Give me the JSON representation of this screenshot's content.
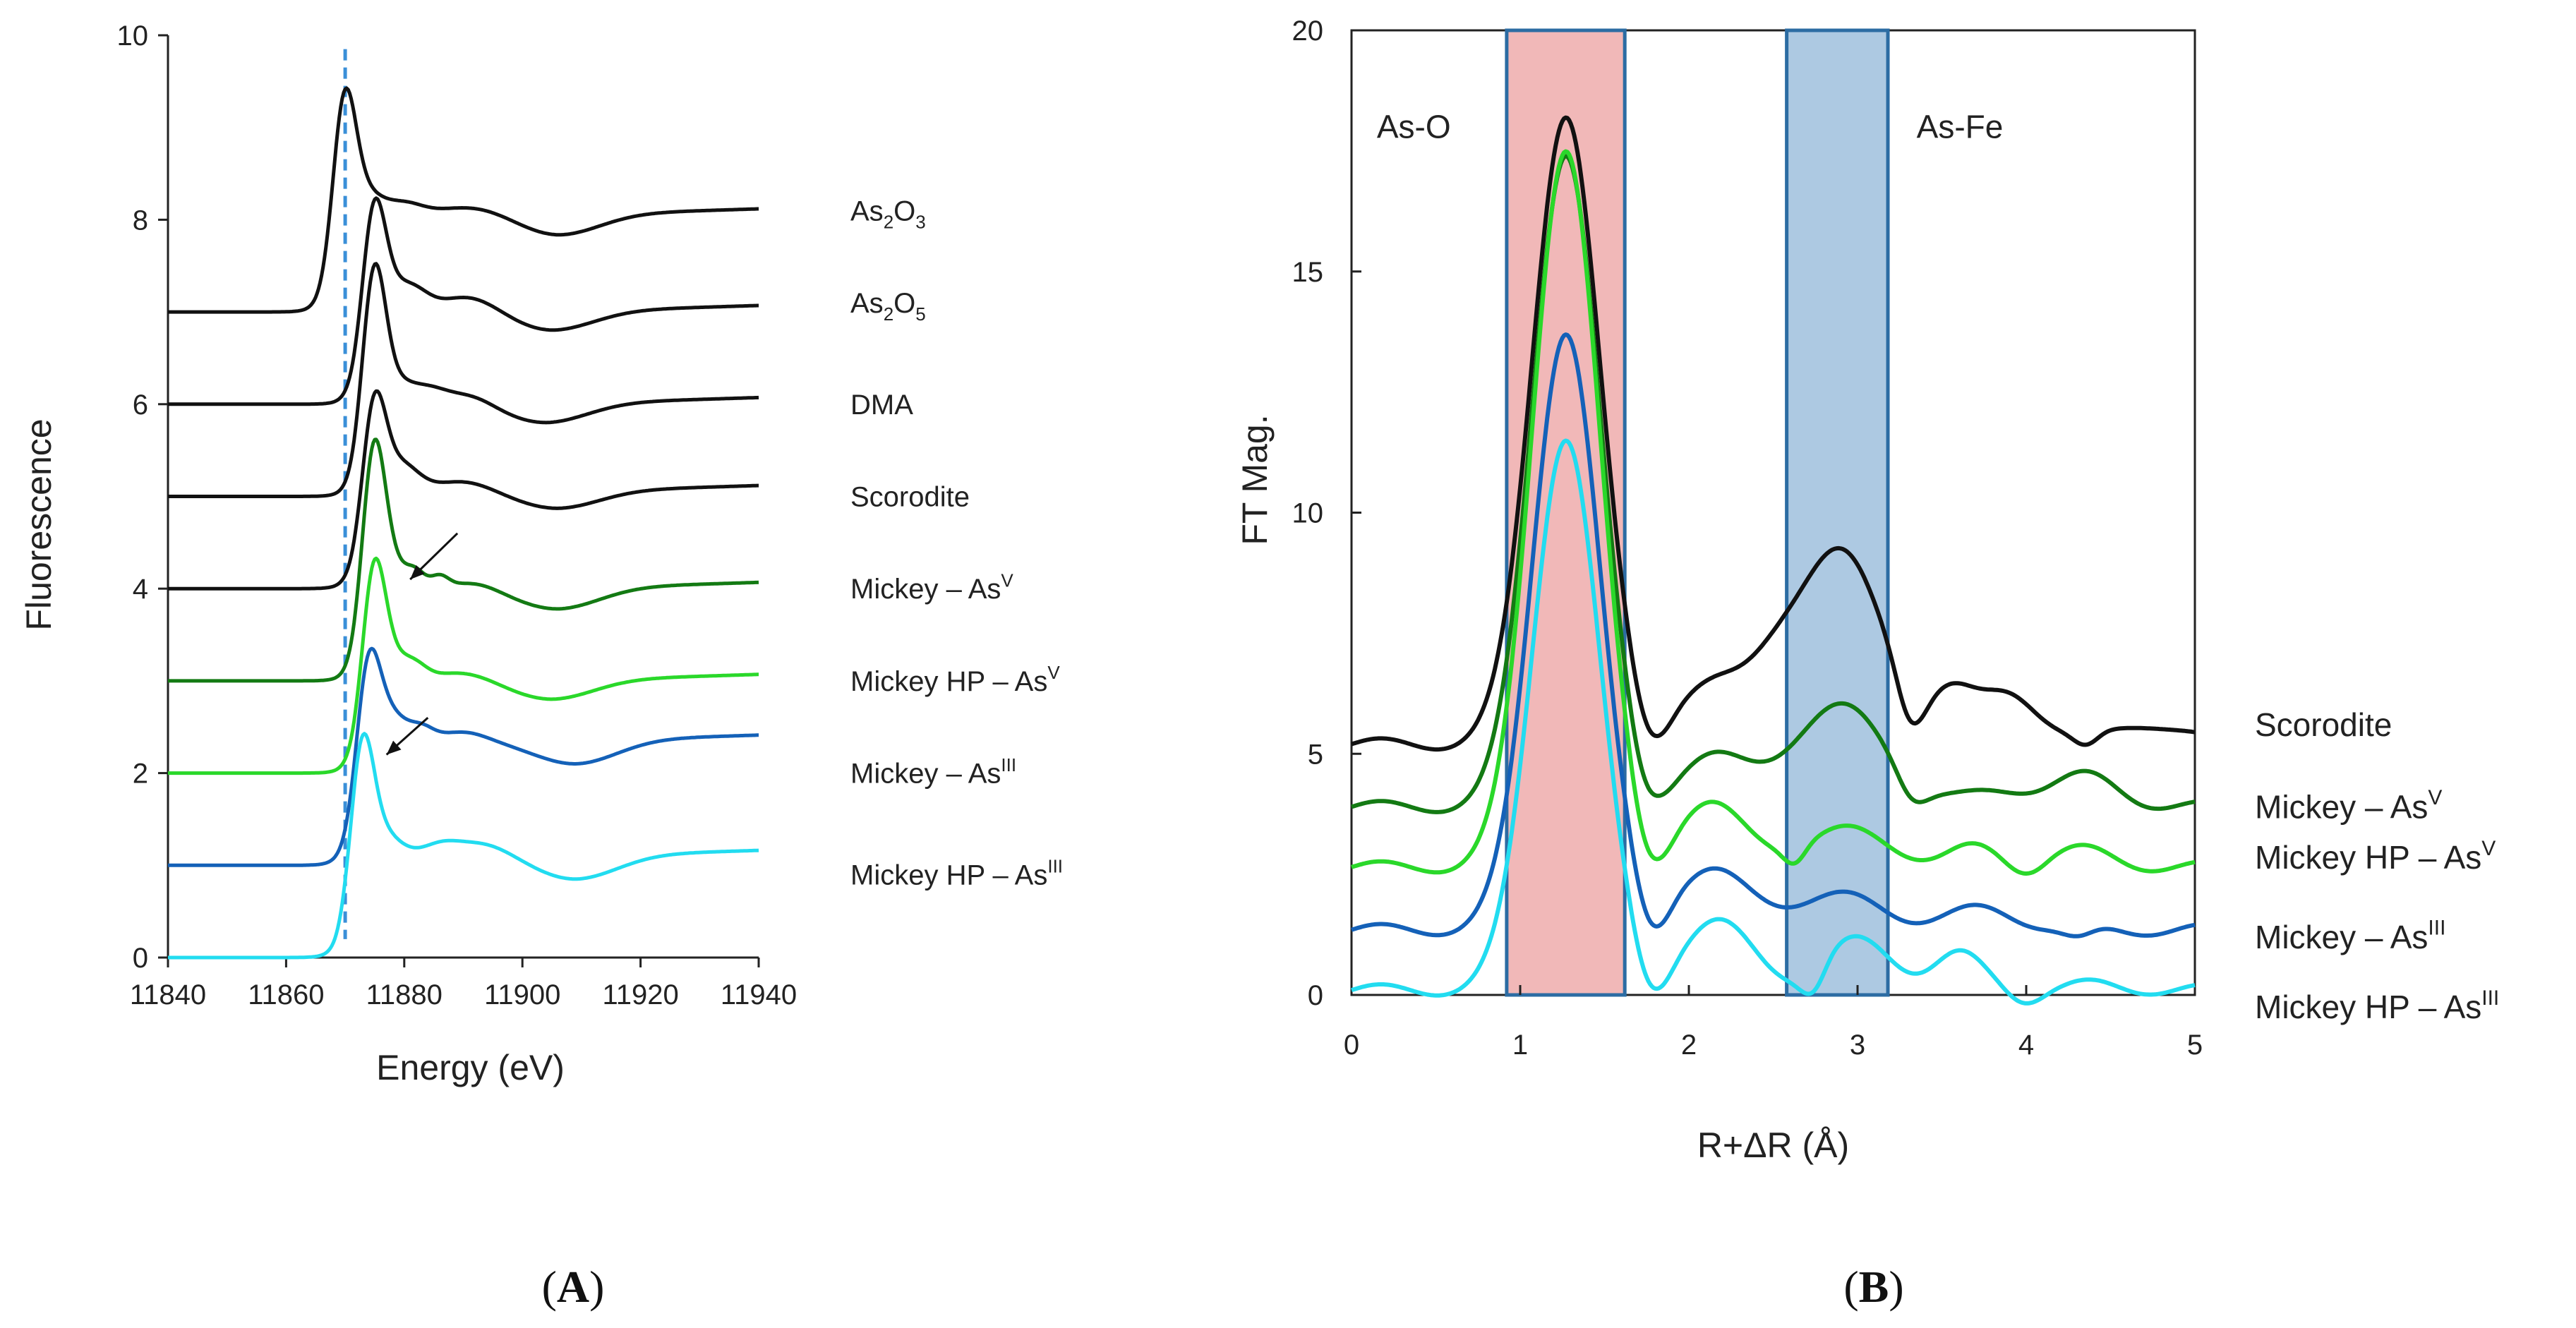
{
  "chart_data": [
    {
      "id": "A",
      "type": "line",
      "panel_label": {
        "open": "(",
        "letter": "A",
        "close": ")"
      },
      "xlabel": "Energy (eV)",
      "ylabel": "Fluorescence",
      "xlim": [
        11840,
        11940
      ],
      "ylim": [
        0,
        10
      ],
      "xticks": [
        "11840",
        "11860",
        "11880",
        "11900",
        "11920",
        "11940"
      ],
      "yticks": [
        "0",
        "2",
        "4",
        "6",
        "8",
        "10"
      ],
      "reference_line": {
        "x": 11870,
        "color": "#3a8fd8",
        "style": "dashed"
      },
      "arrows": [
        {
          "from": [
            11889,
            4.6
          ],
          "to": [
            11881,
            4.1
          ]
        },
        {
          "from": [
            11884,
            2.6
          ],
          "to": [
            11877,
            2.2
          ]
        }
      ],
      "series": [
        {
          "name": "As2O3",
          "label": {
            "base": "As",
            "sub1": "2",
            "mid": "O",
            "sub2": "3"
          },
          "color": "#111111",
          "offset": 7.0,
          "edge": 11868,
          "peak": 2.45,
          "step": 1.05,
          "wiggles": [
            [
              11880,
              0.12,
              3
            ],
            [
              11892,
              0.1,
              6
            ]
          ],
          "dip": [
            11906,
            0.22,
            7
          ],
          "label_y": 8.1
        },
        {
          "name": "As2O5",
          "label": {
            "base": "As",
            "sub1": "2",
            "mid": "O",
            "sub2": "5"
          },
          "color": "#111111",
          "offset": 6.0,
          "edge": 11873,
          "peak": 2.25,
          "step": 1.0,
          "wiggles": [
            [
              11882,
              0.15,
              2.5
            ],
            [
              11891,
              0.18,
              5
            ]
          ],
          "dip": [
            11905,
            0.2,
            7
          ],
          "label_y": 7.1
        },
        {
          "name": "DMA",
          "label": {
            "text": "DMA"
          },
          "color": "#111111",
          "offset": 5.0,
          "edge": 11873,
          "peak": 2.55,
          "step": 1.0,
          "wiggles": [
            [
              11884,
              0.15,
              3
            ],
            [
              11891,
              0.12,
              4
            ]
          ],
          "dip": [
            11904,
            0.2,
            7
          ],
          "label_y": 6.0
        },
        {
          "name": "Scorodite",
          "label": {
            "text": "Scorodite"
          },
          "color": "#111111",
          "offset": 4.0,
          "edge": 11873,
          "peak": 2.15,
          "step": 1.05,
          "wiggles": [
            [
              11881,
              0.1,
              2.5
            ],
            [
              11890,
              0.12,
              5
            ]
          ],
          "dip": [
            11906,
            0.18,
            7
          ],
          "label_y": 5.0
        },
        {
          "name": "Mickey – AsV",
          "label": {
            "base": "Mickey – As",
            "sup": "V"
          },
          "color": "#137a13",
          "offset": 3.0,
          "edge": 11873,
          "peak": 2.65,
          "step": 1.0,
          "wiggles": [
            [
              11882,
              0.12,
              1.5
            ],
            [
              11886,
              0.12,
              1.5
            ],
            [
              11892,
              0.08,
              4
            ]
          ],
          "dip": [
            11906,
            0.22,
            7
          ],
          "label_y": 4.0
        },
        {
          "name": "Mickey HP – AsV",
          "label": {
            "base": "Mickey HP – As",
            "sup": "V"
          },
          "color": "#2ad82a",
          "offset": 2.0,
          "edge": 11873,
          "peak": 2.35,
          "step": 1.0,
          "wiggles": [
            [
              11882,
              0.1,
              2
            ],
            [
              11890,
              0.1,
              5
            ]
          ],
          "dip": [
            11905,
            0.2,
            7
          ],
          "label_y": 3.0
        },
        {
          "name": "Mickey – AsIII",
          "label": {
            "base": "Mickey – As",
            "sup": "III"
          },
          "color": "#1461b8",
          "offset": 1.0,
          "edge": 11872,
          "peak": 2.35,
          "step": 1.35,
          "wiggles": [
            [
              11883,
              0.12,
              2
            ],
            [
              11890,
              0.1,
              4
            ]
          ],
          "dip": [
            11909,
            0.25,
            7
          ],
          "label_y": 2.0
        },
        {
          "name": "Mickey HP – AsIII",
          "label": {
            "base": "Mickey HP – As",
            "sup": "III"
          },
          "color": "#22dcf0",
          "offset": 0.0,
          "edge": 11871,
          "peak": 2.45,
          "step": 1.1,
          "wiggles": [
            [
              11886,
              0.1,
              3
            ],
            [
              11893,
              0.15,
              5
            ]
          ],
          "dip": [
            11909,
            0.25,
            7
          ],
          "label_y": 0.9
        }
      ]
    },
    {
      "id": "B",
      "type": "line",
      "panel_label": {
        "open": "(",
        "letter": "B",
        "close": ")"
      },
      "xlabel": "R+ΔR (Å)",
      "ylabel": "FT Mag.",
      "xlim": [
        0,
        5
      ],
      "ylim": [
        0,
        20
      ],
      "xticks": [
        "0",
        "1",
        "2",
        "3",
        "4",
        "5"
      ],
      "yticks": [
        "0",
        "5",
        "10",
        "15",
        "20"
      ],
      "regions": [
        {
          "name": "As-O",
          "x0": 0.92,
          "x1": 1.62,
          "fill": "#f1b8b8",
          "edge": "#2c6ca3"
        },
        {
          "name": "As-Fe",
          "x0": 2.58,
          "x1": 3.18,
          "fill": "#adc9e2",
          "edge": "#2c6ca3"
        }
      ],
      "annotations": [
        {
          "text": "As-O",
          "x": 0.15,
          "y": 18.0
        },
        {
          "text": "As-Fe",
          "x": 3.35,
          "y": 18.0
        }
      ],
      "series": [
        {
          "name": "Scorodite",
          "label": {
            "text": "Scorodite"
          },
          "color": "#111111",
          "base": 5.2,
          "peak": 18.3,
          "label_y": 5.6,
          "bumps": [
            [
              2.1,
              1.2,
              0.22
            ],
            [
              2.5,
              0.6,
              0.15
            ],
            [
              2.88,
              3.95,
              0.28
            ],
            [
              3.55,
              0.8,
              0.13
            ],
            [
              3.9,
              1.1,
              0.18
            ],
            [
              4.7,
              0.45,
              0.2
            ]
          ],
          "valleys": [
            [
              1.8,
              0.15,
              0.08
            ],
            [
              3.33,
              0.35,
              0.07
            ],
            [
              4.35,
              0.2,
              0.07
            ]
          ]
        },
        {
          "name": "Mickey – AsV",
          "label": {
            "base": "Mickey – As",
            "sup": "V"
          },
          "color": "#137a13",
          "base": 3.9,
          "peak": 17.5,
          "label_y": 3.9,
          "bumps": [
            [
              2.1,
              1.0,
              0.2
            ],
            [
              2.88,
              2.05,
              0.3
            ],
            [
              3.9,
              0.3,
              0.2
            ],
            [
              4.35,
              0.6,
              0.2
            ]
          ],
          "valleys": [
            [
              1.8,
              0.35,
              0.08
            ],
            [
              3.35,
              0.25,
              0.08
            ]
          ]
        },
        {
          "name": "Mickey HP – AsV",
          "label": {
            "base": "Mickey HP – As",
            "sup": "V"
          },
          "color": "#2ad82a",
          "base": 2.65,
          "peak": 17.6,
          "label_y": 2.85,
          "bumps": [
            [
              2.1,
              1.3,
              0.2
            ],
            [
              2.9,
              0.75,
              0.3
            ],
            [
              3.7,
              0.35,
              0.15
            ],
            [
              4.3,
              0.35,
              0.2
            ]
          ],
          "valleys": [
            [
              1.8,
              0.15,
              0.08
            ],
            [
              2.62,
              0.25,
              0.06
            ],
            [
              4.0,
              0.15,
              0.08
            ]
          ]
        },
        {
          "name": "Mickey – AsIII",
          "label": {
            "base": "Mickey – As",
            "sup": "III"
          },
          "color": "#1461b8",
          "base": 1.35,
          "peak": 13.8,
          "label_y": 1.2,
          "bumps": [
            [
              2.1,
              1.2,
              0.22
            ],
            [
              2.85,
              0.7,
              0.3
            ],
            [
              3.75,
              0.4,
              0.22
            ]
          ],
          "valleys": [
            [
              1.8,
              0.0,
              0.08
            ],
            [
              4.3,
              0.1,
              0.1
            ]
          ]
        },
        {
          "name": "Mickey HP – AsIII",
          "label": {
            "base": "Mickey HP – As",
            "sup": "III"
          },
          "color": "#22dcf0",
          "base": 0.1,
          "peak": 11.6,
          "label_y": -0.25,
          "bumps": [
            [
              2.15,
              1.4,
              0.22
            ],
            [
              3.0,
              1.0,
              0.22
            ],
            [
              3.6,
              0.7,
              0.15
            ],
            [
              4.4,
              0.1,
              0.2
            ]
          ],
          "valleys": [
            [
              1.8,
              0.0,
              0.08
            ],
            [
              2.72,
              0.0,
              0.07
            ],
            [
              4.0,
              0.0,
              0.08
            ]
          ]
        }
      ]
    }
  ]
}
